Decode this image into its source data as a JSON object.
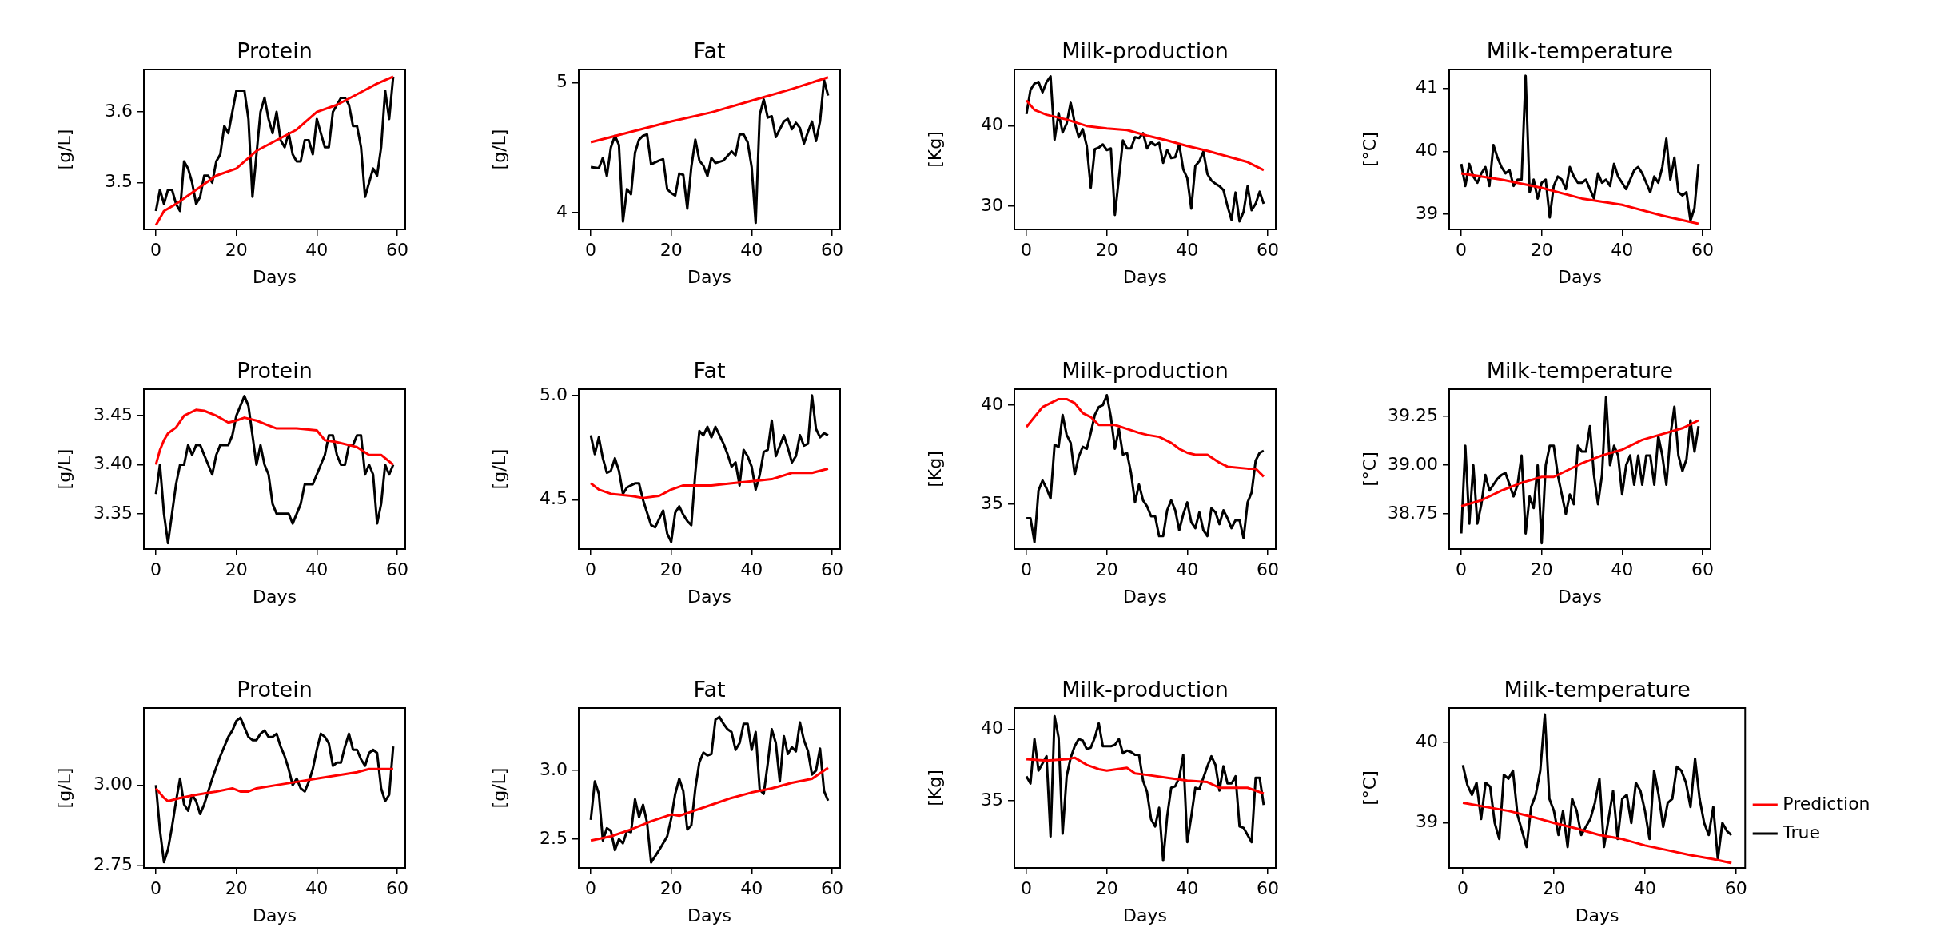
{
  "chart_data": [
    {
      "type": "line",
      "title": "Protein",
      "xlabel": "Days",
      "ylabel": "[g/L]",
      "xlim": [
        -3,
        62
      ],
      "xticks": [
        0,
        20,
        40,
        60
      ],
      "ylim": [
        3.434,
        3.66
      ],
      "yticks": [
        3.5,
        3.6
      ],
      "series": [
        {
          "color": "#ff0000",
          "x": [
            0,
            2,
            5,
            10,
            15,
            20,
            25,
            30,
            35,
            40,
            45,
            50,
            55,
            59
          ],
          "values": [
            3.44,
            3.46,
            3.47,
            3.49,
            3.51,
            3.52,
            3.545,
            3.56,
            3.575,
            3.6,
            3.61,
            3.625,
            3.64,
            3.65
          ]
        },
        {
          "color": "#000000",
          "x": [
            0,
            1,
            2,
            3,
            4,
            5,
            6,
            7,
            8,
            9,
            10,
            11,
            12,
            13,
            14,
            15,
            16,
            17,
            18,
            19,
            20,
            22,
            23,
            24,
            25,
            26,
            27,
            28,
            29,
            30,
            31,
            32,
            33,
            34,
            35,
            36,
            37,
            38,
            39,
            40,
            41,
            42,
            43,
            44,
            45,
            46,
            47,
            48,
            49,
            50,
            51,
            52,
            53,
            54,
            55,
            56,
            57,
            58,
            59
          ],
          "values": [
            3.46,
            3.49,
            3.47,
            3.49,
            3.49,
            3.47,
            3.46,
            3.53,
            3.52,
            3.5,
            3.47,
            3.48,
            3.51,
            3.51,
            3.5,
            3.53,
            3.54,
            3.58,
            3.57,
            3.6,
            3.63,
            3.63,
            3.59,
            3.48,
            3.54,
            3.6,
            3.62,
            3.59,
            3.57,
            3.6,
            3.56,
            3.55,
            3.57,
            3.54,
            3.53,
            3.53,
            3.56,
            3.56,
            3.54,
            3.59,
            3.57,
            3.55,
            3.55,
            3.6,
            3.61,
            3.62,
            3.62,
            3.61,
            3.58,
            3.58,
            3.55,
            3.48,
            3.5,
            3.52,
            3.51,
            3.55,
            3.63,
            3.59,
            3.65
          ]
        }
      ]
    },
    {
      "type": "line",
      "title": "Fat",
      "xlabel": "Days",
      "ylabel": "[g/L]",
      "xlim": [
        -3,
        62
      ],
      "xticks": [
        0,
        20,
        40,
        60
      ],
      "ylim": [
        3.87,
        5.1
      ],
      "yticks": [
        4,
        5
      ],
      "series": [
        {
          "color": "#ff0000",
          "x": [
            0,
            10,
            20,
            30,
            40,
            50,
            59
          ],
          "values": [
            4.54,
            4.62,
            4.7,
            4.77,
            4.86,
            4.95,
            5.04
          ]
        },
        {
          "color": "#000000",
          "x": [
            0,
            2,
            3,
            4,
            5,
            6,
            7,
            8,
            9,
            10,
            11,
            12,
            13,
            14,
            15,
            17,
            18,
            19,
            20,
            21,
            22,
            23,
            24,
            25,
            26,
            27,
            28,
            29,
            30,
            31,
            33,
            35,
            36,
            37,
            38,
            39,
            40,
            41,
            42,
            43,
            44,
            45,
            46,
            47,
            48,
            49,
            50,
            51,
            52,
            53,
            54,
            55,
            56,
            57,
            58,
            59
          ],
          "values": [
            4.35,
            4.34,
            4.42,
            4.28,
            4.5,
            4.59,
            4.52,
            3.93,
            4.18,
            4.14,
            4.46,
            4.56,
            4.59,
            4.6,
            4.37,
            4.4,
            4.41,
            4.18,
            4.15,
            4.13,
            4.3,
            4.29,
            4.03,
            4.35,
            4.56,
            4.4,
            4.36,
            4.28,
            4.42,
            4.38,
            4.4,
            4.47,
            4.44,
            4.6,
            4.6,
            4.54,
            4.35,
            3.92,
            4.75,
            4.87,
            4.73,
            4.74,
            4.58,
            4.64,
            4.7,
            4.72,
            4.64,
            4.69,
            4.65,
            4.53,
            4.62,
            4.7,
            4.55,
            4.7,
            5.02,
            4.9
          ]
        }
      ]
    },
    {
      "type": "line",
      "title": "Milk-production",
      "xlabel": "Days",
      "ylabel": "[Kg]",
      "xlim": [
        -3,
        62
      ],
      "xticks": [
        0,
        20,
        40,
        60
      ],
      "ylim": [
        27.1,
        47.05
      ],
      "yticks": [
        30,
        40
      ],
      "series": [
        {
          "color": "#ff0000",
          "x": [
            0,
            2,
            5,
            10,
            15,
            20,
            25,
            30,
            35,
            40,
            45,
            50,
            55,
            59
          ],
          "values": [
            43.2,
            42,
            41.4,
            40.8,
            40,
            39.7,
            39.5,
            38.8,
            38.2,
            37.5,
            36.9,
            36.2,
            35.5,
            34.5
          ]
        },
        {
          "color": "#000000",
          "x": [
            0,
            1,
            2,
            3,
            4,
            5,
            6,
            7,
            8,
            9,
            10,
            11,
            12,
            13,
            14,
            15,
            16,
            17,
            18,
            19,
            20,
            21,
            22,
            23,
            24,
            25,
            26,
            27,
            28,
            29,
            30,
            31,
            32,
            33,
            34,
            35,
            36,
            37,
            38,
            39,
            40,
            41,
            42,
            43,
            44,
            45,
            46,
            47,
            48,
            49,
            50,
            51,
            52,
            53,
            54,
            55,
            56,
            57,
            58,
            59
          ],
          "values": [
            41.5,
            44.5,
            45.3,
            45.5,
            44.2,
            45.5,
            46.2,
            38.3,
            41.6,
            39.2,
            40.3,
            42.9,
            40.4,
            38.6,
            39.6,
            37.5,
            32.3,
            37.1,
            37.3,
            37.7,
            37,
            37.2,
            28.9,
            33.5,
            38.2,
            37.2,
            37.2,
            38.6,
            38.5,
            39.1,
            37.2,
            38,
            37.6,
            37.9,
            35.4,
            37,
            36,
            36.1,
            37.7,
            34.6,
            33.5,
            29.7,
            35,
            35.6,
            36.8,
            34,
            33.2,
            32.8,
            32.5,
            32,
            30,
            28.3,
            31.7,
            28.1,
            29.3,
            32.5,
            29.5,
            30.3,
            31.8,
            30.3
          ]
        }
      ]
    },
    {
      "type": "line",
      "title": "Milk-temperature",
      "xlabel": "Days",
      "ylabel": "[°C]",
      "xlim": [
        -3,
        62
      ],
      "xticks": [
        0,
        20,
        40,
        60
      ],
      "ylim": [
        38.76,
        41.3
      ],
      "yticks": [
        39,
        40,
        41
      ],
      "series": [
        {
          "color": "#ff0000",
          "x": [
            0,
            10,
            20,
            30,
            40,
            50,
            59
          ],
          "values": [
            39.65,
            39.55,
            39.42,
            39.25,
            39.15,
            38.98,
            38.85
          ]
        },
        {
          "color": "#000000",
          "x": [
            0,
            1,
            2,
            3,
            4,
            5,
            6,
            7,
            8,
            9,
            10,
            11,
            12,
            13,
            14,
            15,
            16,
            17,
            18,
            19,
            20,
            21,
            22,
            23,
            24,
            25,
            26,
            27,
            28,
            29,
            30,
            31,
            32,
            33,
            34,
            35,
            36,
            37,
            38,
            39,
            40,
            41,
            42,
            43,
            44,
            45,
            46,
            47,
            48,
            49,
            50,
            51,
            52,
            53,
            54,
            55,
            56,
            57,
            58,
            59
          ],
          "values": [
            39.8,
            39.45,
            39.8,
            39.6,
            39.5,
            39.65,
            39.75,
            39.45,
            40.1,
            39.9,
            39.75,
            39.65,
            39.7,
            39.45,
            39.55,
            39.55,
            41.2,
            39.35,
            39.55,
            39.25,
            39.5,
            39.55,
            38.95,
            39.45,
            39.6,
            39.55,
            39.4,
            39.75,
            39.6,
            39.5,
            39.5,
            39.55,
            39.4,
            39.25,
            39.65,
            39.5,
            39.55,
            39.45,
            39.8,
            39.6,
            39.5,
            39.4,
            39.55,
            39.7,
            39.75,
            39.65,
            39.5,
            39.35,
            39.6,
            39.5,
            39.75,
            40.2,
            39.55,
            39.9,
            39.35,
            39.3,
            39.35,
            38.9,
            39.1,
            39.8
          ]
        }
      ]
    },
    {
      "type": "line",
      "title": "Protein",
      "xlabel": "Days",
      "ylabel": "[g/L]",
      "xlim": [
        -3,
        62
      ],
      "xticks": [
        0,
        20,
        40,
        60
      ],
      "ylim": [
        3.314,
        3.477
      ],
      "yticks": [
        3.35,
        {
          "value": 3.4,
          "label": "3.40"
        },
        3.45
      ],
      "series": [
        {
          "color": "#ff0000",
          "x": [
            0,
            1,
            2,
            3,
            5,
            7,
            10,
            12,
            15,
            18,
            20,
            22,
            25,
            28,
            30,
            35,
            40,
            42,
            45,
            50,
            53,
            56,
            59
          ],
          "values": [
            3.4,
            3.415,
            3.425,
            3.432,
            3.438,
            3.45,
            3.456,
            3.455,
            3.45,
            3.443,
            3.445,
            3.448,
            3.445,
            3.44,
            3.437,
            3.437,
            3.435,
            3.425,
            3.423,
            3.418,
            3.41,
            3.41,
            3.4
          ]
        },
        {
          "color": "#000000",
          "x": [
            0,
            1,
            2,
            3,
            4,
            5,
            6,
            7,
            8,
            9,
            10,
            11,
            12,
            13,
            14,
            15,
            16,
            17,
            18,
            19,
            20,
            21,
            22,
            23,
            24,
            25,
            26,
            27,
            28,
            29,
            30,
            31,
            32,
            33,
            34,
            35,
            36,
            37,
            38,
            39,
            40,
            41,
            42,
            43,
            44,
            45,
            46,
            47,
            48,
            49,
            50,
            51,
            52,
            53,
            54,
            55,
            56,
            57,
            58,
            59
          ],
          "values": [
            3.37,
            3.4,
            3.35,
            3.32,
            3.35,
            3.38,
            3.4,
            3.4,
            3.42,
            3.41,
            3.42,
            3.42,
            3.41,
            3.4,
            3.39,
            3.41,
            3.42,
            3.42,
            3.42,
            3.43,
            3.45,
            3.46,
            3.47,
            3.46,
            3.43,
            3.4,
            3.42,
            3.4,
            3.39,
            3.36,
            3.35,
            3.35,
            3.35,
            3.35,
            3.34,
            3.35,
            3.36,
            3.38,
            3.38,
            3.38,
            3.39,
            3.4,
            3.41,
            3.43,
            3.43,
            3.41,
            3.4,
            3.4,
            3.42,
            3.42,
            3.43,
            3.43,
            3.39,
            3.4,
            3.39,
            3.34,
            3.36,
            3.4,
            3.39,
            3.4
          ]
        }
      ]
    },
    {
      "type": "line",
      "title": "Fat",
      "xlabel": "Days",
      "ylabel": "[g/L]",
      "xlim": [
        -3,
        62
      ],
      "xticks": [
        0,
        20,
        40,
        60
      ],
      "ylim": [
        4.266,
        5.03
      ],
      "yticks": [
        4.5,
        {
          "value": 5,
          "label": "5.0"
        }
      ],
      "series": [
        {
          "color": "#ff0000",
          "x": [
            0,
            2,
            5,
            10,
            13,
            17,
            20,
            23,
            30,
            35,
            40,
            45,
            50,
            55,
            59
          ],
          "values": [
            4.58,
            4.55,
            4.53,
            4.52,
            4.51,
            4.52,
            4.55,
            4.57,
            4.57,
            4.58,
            4.59,
            4.6,
            4.63,
            4.63,
            4.65
          ]
        },
        {
          "color": "#000000",
          "x": [
            0,
            1,
            2,
            3,
            4,
            5,
            6,
            7,
            8,
            9,
            10,
            11,
            12,
            13,
            14,
            15,
            16,
            17,
            18,
            19,
            20,
            21,
            22,
            23,
            24,
            25,
            26,
            27,
            28,
            29,
            30,
            31,
            32,
            33,
            34,
            35,
            36,
            37,
            38,
            39,
            40,
            41,
            42,
            43,
            44,
            45,
            46,
            47,
            48,
            49,
            50,
            51,
            52,
            53,
            54,
            55,
            56,
            57,
            58,
            59
          ],
          "values": [
            4.81,
            4.72,
            4.8,
            4.7,
            4.63,
            4.64,
            4.7,
            4.64,
            4.53,
            4.56,
            4.57,
            4.58,
            4.58,
            4.5,
            4.44,
            4.38,
            4.37,
            4.41,
            4.45,
            4.34,
            4.3,
            4.44,
            4.47,
            4.43,
            4.4,
            4.38,
            4.63,
            4.83,
            4.81,
            4.85,
            4.8,
            4.85,
            4.81,
            4.77,
            4.72,
            4.66,
            4.68,
            4.57,
            4.74,
            4.71,
            4.66,
            4.55,
            4.62,
            4.73,
            4.74,
            4.88,
            4.71,
            4.76,
            4.81,
            4.75,
            4.68,
            4.71,
            4.81,
            4.76,
            4.77,
            5.0,
            4.84,
            4.8,
            4.82,
            4.81
          ]
        }
      ]
    },
    {
      "type": "line",
      "title": "Milk-production",
      "xlabel": "Days",
      "ylabel": "[Kg]",
      "xlim": [
        -3,
        62
      ],
      "xticks": [
        0,
        20,
        40,
        60
      ],
      "ylim": [
        32.75,
        40.8
      ],
      "yticks": [
        35,
        40
      ],
      "series": [
        {
          "color": "#ff0000",
          "x": [
            0,
            2,
            4,
            6,
            8,
            10,
            12,
            14,
            16,
            18,
            20,
            22,
            25,
            28,
            30,
            33,
            36,
            38,
            40,
            42,
            45,
            48,
            50,
            55,
            57,
            59
          ],
          "values": [
            38.9,
            39.4,
            39.9,
            40.1,
            40.3,
            40.3,
            40.1,
            39.6,
            39.4,
            39,
            39,
            39,
            38.8,
            38.6,
            38.5,
            38.4,
            38.1,
            37.8,
            37.6,
            37.5,
            37.5,
            37.1,
            36.9,
            36.8,
            36.8,
            36.4
          ]
        },
        {
          "color": "#000000",
          "x": [
            0,
            1,
            2,
            3,
            4,
            5,
            6,
            7,
            8,
            9,
            10,
            11,
            12,
            13,
            14,
            15,
            16,
            17,
            18,
            19,
            20,
            21,
            22,
            23,
            24,
            25,
            26,
            27,
            28,
            29,
            30,
            31,
            32,
            33,
            34,
            35,
            36,
            37,
            38,
            39,
            40,
            41,
            42,
            43,
            44,
            45,
            46,
            47,
            48,
            49,
            50,
            51,
            52,
            53,
            54,
            55,
            56,
            57,
            58,
            59
          ],
          "values": [
            34.3,
            34.3,
            33.1,
            35.7,
            36.2,
            35.8,
            35.3,
            38,
            37.9,
            39.5,
            38.5,
            38.1,
            36.5,
            37.4,
            37.9,
            37.8,
            38.6,
            39.5,
            39.9,
            40,
            40.5,
            39.4,
            37.8,
            38.8,
            37.5,
            37.6,
            36.6,
            35.1,
            36,
            35.2,
            34.9,
            34.4,
            34.4,
            33.4,
            33.4,
            34.7,
            35.2,
            34.7,
            33.7,
            34.5,
            35.1,
            34.1,
            33.8,
            34.6,
            33.7,
            33.4,
            34.8,
            34.6,
            34,
            34.7,
            34.3,
            33.8,
            34.2,
            34.2,
            33.3,
            35.1,
            35.6,
            37.2,
            37.6,
            37.7
          ]
        }
      ]
    },
    {
      "type": "line",
      "title": "Milk-temperature",
      "xlabel": "Days",
      "ylabel": "[°C]",
      "xlim": [
        -3,
        62
      ],
      "xticks": [
        0,
        20,
        40,
        60
      ],
      "ylim": [
        38.57,
        39.39
      ],
      "yticks": [
        38.75,
        {
          "value": 39,
          "label": "39.00"
        },
        39.25
      ],
      "series": [
        {
          "color": "#ff0000",
          "x": [
            0,
            5,
            10,
            15,
            20,
            23,
            27,
            30,
            35,
            40,
            45,
            50,
            55,
            59
          ],
          "values": [
            38.79,
            38.82,
            38.87,
            38.91,
            38.94,
            38.94,
            38.98,
            39.01,
            39.05,
            39.08,
            39.13,
            39.16,
            39.19,
            39.23
          ]
        },
        {
          "color": "#000000",
          "x": [
            0,
            1,
            2,
            3,
            4,
            5,
            6,
            7,
            8,
            9,
            10,
            11,
            12,
            13,
            14,
            15,
            16,
            17,
            18,
            19,
            20,
            21,
            22,
            23,
            24,
            25,
            26,
            27,
            28,
            29,
            30,
            31,
            32,
            33,
            34,
            35,
            36,
            37,
            38,
            39,
            40,
            41,
            42,
            43,
            44,
            45,
            46,
            47,
            48,
            49,
            50,
            51,
            52,
            53,
            54,
            55,
            56,
            57,
            58,
            59
          ],
          "values": [
            38.65,
            39.1,
            38.7,
            39,
            38.7,
            38.8,
            38.95,
            38.87,
            38.9,
            38.93,
            38.95,
            38.96,
            38.9,
            38.84,
            38.9,
            39.05,
            38.65,
            38.84,
            38.78,
            39,
            38.6,
            39,
            39.1,
            39.1,
            38.95,
            38.85,
            38.75,
            38.85,
            38.8,
            39.1,
            39.07,
            39.07,
            39.2,
            38.95,
            38.8,
            38.95,
            39.35,
            39,
            39.1,
            39.05,
            38.85,
            39,
            39.05,
            38.9,
            39.05,
            38.9,
            39.05,
            39.05,
            38.9,
            39.15,
            39.05,
            38.9,
            39.15,
            39.3,
            39.05,
            38.97,
            39.03,
            39.23,
            39.07,
            39.2
          ]
        }
      ]
    },
    {
      "type": "line",
      "title": "Protein",
      "xlabel": "Days",
      "ylabel": "[g/L]",
      "xlim": [
        -3,
        62
      ],
      "xticks": [
        0,
        20,
        40,
        60
      ],
      "ylim": [
        2.742,
        3.24
      ],
      "yticks": [
        2.75,
        {
          "value": 3,
          "label": "3.00"
        }
      ],
      "series": [
        {
          "color": "#ff0000",
          "x": [
            0,
            2,
            3,
            6,
            10,
            15,
            19,
            21,
            23,
            25,
            30,
            35,
            40,
            45,
            50,
            53,
            59
          ],
          "values": [
            2.99,
            2.96,
            2.95,
            2.96,
            2.97,
            2.98,
            2.99,
            2.98,
            2.98,
            2.99,
            3.0,
            3.01,
            3.02,
            3.03,
            3.04,
            3.05,
            3.05
          ]
        },
        {
          "color": "#000000",
          "x": [
            0,
            1,
            2,
            3,
            4,
            5,
            6,
            7,
            8,
            9,
            10,
            11,
            12,
            14,
            16,
            18,
            19,
            20,
            21,
            22,
            23,
            24,
            25,
            26,
            27,
            28,
            29,
            30,
            31,
            32,
            33,
            34,
            35,
            36,
            37,
            38,
            39,
            40,
            41,
            42,
            43,
            44,
            45,
            46,
            47,
            48,
            49,
            50,
            51,
            52,
            53,
            54,
            55,
            56,
            57,
            58,
            59
          ],
          "values": [
            3.0,
            2.86,
            2.76,
            2.8,
            2.87,
            2.95,
            3.02,
            2.94,
            2.92,
            2.97,
            2.95,
            2.91,
            2.94,
            3.02,
            3.09,
            3.15,
            3.17,
            3.2,
            3.21,
            3.18,
            3.15,
            3.14,
            3.14,
            3.16,
            3.17,
            3.15,
            3.15,
            3.16,
            3.12,
            3.09,
            3.05,
            3.0,
            3.02,
            2.99,
            2.98,
            3.01,
            3.05,
            3.11,
            3.16,
            3.15,
            3.13,
            3.06,
            3.07,
            3.07,
            3.12,
            3.16,
            3.11,
            3.11,
            3.08,
            3.06,
            3.1,
            3.11,
            3.1,
            2.99,
            2.95,
            2.97,
            3.12
          ]
        }
      ]
    },
    {
      "type": "line",
      "title": "Fat",
      "xlabel": "Days",
      "ylabel": "[g/L]",
      "xlim": [
        -3,
        62
      ],
      "xticks": [
        0,
        20,
        40,
        60
      ],
      "ylim": [
        2.29,
        3.455
      ],
      "yticks": [
        2.5,
        {
          "value": 3,
          "label": "3.0"
        }
      ],
      "series": [
        {
          "color": "#ff0000",
          "x": [
            0,
            5,
            10,
            15,
            20,
            22,
            25,
            30,
            35,
            40,
            45,
            50,
            55,
            59
          ],
          "values": [
            2.49,
            2.52,
            2.57,
            2.63,
            2.68,
            2.67,
            2.7,
            2.75,
            2.8,
            2.84,
            2.87,
            2.91,
            2.94,
            3.02
          ]
        },
        {
          "color": "#000000",
          "x": [
            0,
            1,
            2,
            3,
            4,
            5,
            6,
            7,
            8,
            9,
            10,
            11,
            12,
            13,
            14,
            15,
            17,
            19,
            20,
            21,
            22,
            23,
            24,
            25,
            26,
            27,
            28,
            29,
            30,
            31,
            32,
            33,
            34,
            35,
            36,
            37,
            38,
            39,
            40,
            41,
            42,
            43,
            44,
            45,
            46,
            47,
            48,
            49,
            50,
            51,
            52,
            53,
            54,
            55,
            56,
            57,
            58,
            59
          ],
          "values": [
            2.64,
            2.92,
            2.83,
            2.49,
            2.58,
            2.56,
            2.42,
            2.5,
            2.47,
            2.56,
            2.55,
            2.79,
            2.66,
            2.75,
            2.62,
            2.33,
            2.42,
            2.52,
            2.65,
            2.83,
            2.94,
            2.85,
            2.57,
            2.6,
            2.87,
            3.06,
            3.13,
            3.11,
            3.12,
            3.37,
            3.39,
            3.34,
            3.3,
            3.28,
            3.15,
            3.2,
            3.34,
            3.34,
            3.15,
            3.28,
            2.86,
            2.83,
            3.05,
            3.3,
            3.2,
            2.92,
            3.25,
            3.12,
            3.17,
            3.14,
            3.35,
            3.22,
            3.14,
            2.97,
            3.0,
            3.16,
            2.85,
            2.78
          ]
        }
      ]
    },
    {
      "type": "line",
      "title": "Milk-production",
      "xlabel": "Days",
      "ylabel": "[Kg]",
      "xlim": [
        -3,
        62
      ],
      "xticks": [
        0,
        20,
        40,
        60
      ],
      "ylim": [
        30.3,
        41.47
      ],
      "yticks": [
        35,
        40
      ],
      "series": [
        {
          "color": "#ff0000",
          "x": [
            0,
            5,
            10,
            12,
            15,
            18,
            20,
            25,
            27,
            30,
            35,
            40,
            45,
            48,
            55,
            59
          ],
          "values": [
            37.9,
            37.8,
            37.9,
            38,
            37.5,
            37.2,
            37.1,
            37.3,
            36.9,
            36.8,
            36.6,
            36.4,
            36.3,
            35.9,
            35.9,
            35.5
          ]
        },
        {
          "color": "#000000",
          "x": [
            0,
            1,
            2,
            3,
            4,
            5,
            6,
            7,
            8,
            9,
            10,
            11,
            12,
            13,
            14,
            15,
            16,
            17,
            18,
            19,
            20,
            21,
            22,
            23,
            24,
            25,
            26,
            27,
            28,
            29,
            30,
            31,
            32,
            33,
            34,
            35,
            36,
            37,
            38,
            39,
            40,
            41,
            42,
            43,
            44,
            45,
            46,
            47,
            48,
            49,
            50,
            51,
            52,
            53,
            54,
            55,
            56,
            57,
            58,
            59
          ],
          "values": [
            36.7,
            36.2,
            39.3,
            37.1,
            37.6,
            38.1,
            32.5,
            40.9,
            39.4,
            32.7,
            36.7,
            38,
            38.8,
            39.3,
            39.2,
            38.6,
            38.7,
            39.4,
            40.4,
            38.8,
            38.8,
            38.8,
            38.9,
            39.3,
            38.3,
            38.5,
            38.4,
            38.2,
            38.2,
            36.4,
            35.6,
            33.7,
            33.2,
            34.5,
            30.8,
            33.9,
            35.9,
            36,
            36.6,
            38.2,
            32.1,
            33.9,
            35.9,
            35.8,
            36.6,
            37.4,
            38.1,
            37.5,
            35.7,
            37.4,
            36.2,
            36.2,
            36.7,
            33.2,
            33.1,
            32.6,
            32.1,
            36.6,
            36.6,
            34.7
          ]
        }
      ]
    },
    {
      "type": "line",
      "title": "Milk-temperature",
      "xlabel": "Days",
      "ylabel": "[°C]",
      "xlim": [
        -3,
        62
      ],
      "xticks": [
        0,
        20,
        40,
        60
      ],
      "ylim": [
        38.44,
        40.43
      ],
      "yticks": [
        39,
        40
      ],
      "legend": "right",
      "series": [
        {
          "name": "Prediction",
          "color": "#ff0000",
          "x": [
            0,
            5,
            10,
            15,
            20,
            25,
            30,
            35,
            40,
            45,
            50,
            55,
            59
          ],
          "values": [
            39.25,
            39.2,
            39.15,
            39.08,
            39.0,
            38.93,
            38.85,
            38.8,
            38.72,
            38.66,
            38.6,
            38.55,
            38.5
          ]
        },
        {
          "name": "True",
          "color": "#000000",
          "x": [
            0,
            1,
            2,
            3,
            4,
            5,
            6,
            7,
            8,
            9,
            10,
            11,
            12,
            13,
            14,
            15,
            16,
            17,
            18,
            19,
            20,
            21,
            22,
            23,
            24,
            25,
            26,
            27,
            28,
            29,
            30,
            31,
            32,
            33,
            34,
            35,
            36,
            37,
            38,
            39,
            40,
            41,
            42,
            43,
            44,
            45,
            46,
            47,
            48,
            49,
            50,
            51,
            52,
            53,
            54,
            55,
            56,
            57,
            58,
            59
          ],
          "values": [
            39.72,
            39.47,
            39.35,
            39.5,
            39.05,
            39.5,
            39.45,
            39.0,
            38.8,
            39.6,
            39.55,
            39.65,
            39.1,
            38.9,
            38.7,
            39.2,
            39.35,
            39.65,
            40.35,
            39.3,
            39.15,
            38.85,
            39.15,
            38.7,
            39.3,
            39.15,
            38.85,
            38.95,
            39.05,
            39.25,
            39.55,
            38.7,
            39.05,
            39.4,
            38.8,
            39.3,
            39.35,
            39.0,
            39.5,
            39.4,
            39.15,
            38.8,
            39.65,
            39.35,
            38.95,
            39.25,
            39.3,
            39.7,
            39.65,
            39.5,
            39.2,
            39.8,
            39.3,
            39.0,
            38.85,
            39.2,
            38.55,
            39.0,
            38.9,
            38.85
          ]
        }
      ]
    }
  ]
}
